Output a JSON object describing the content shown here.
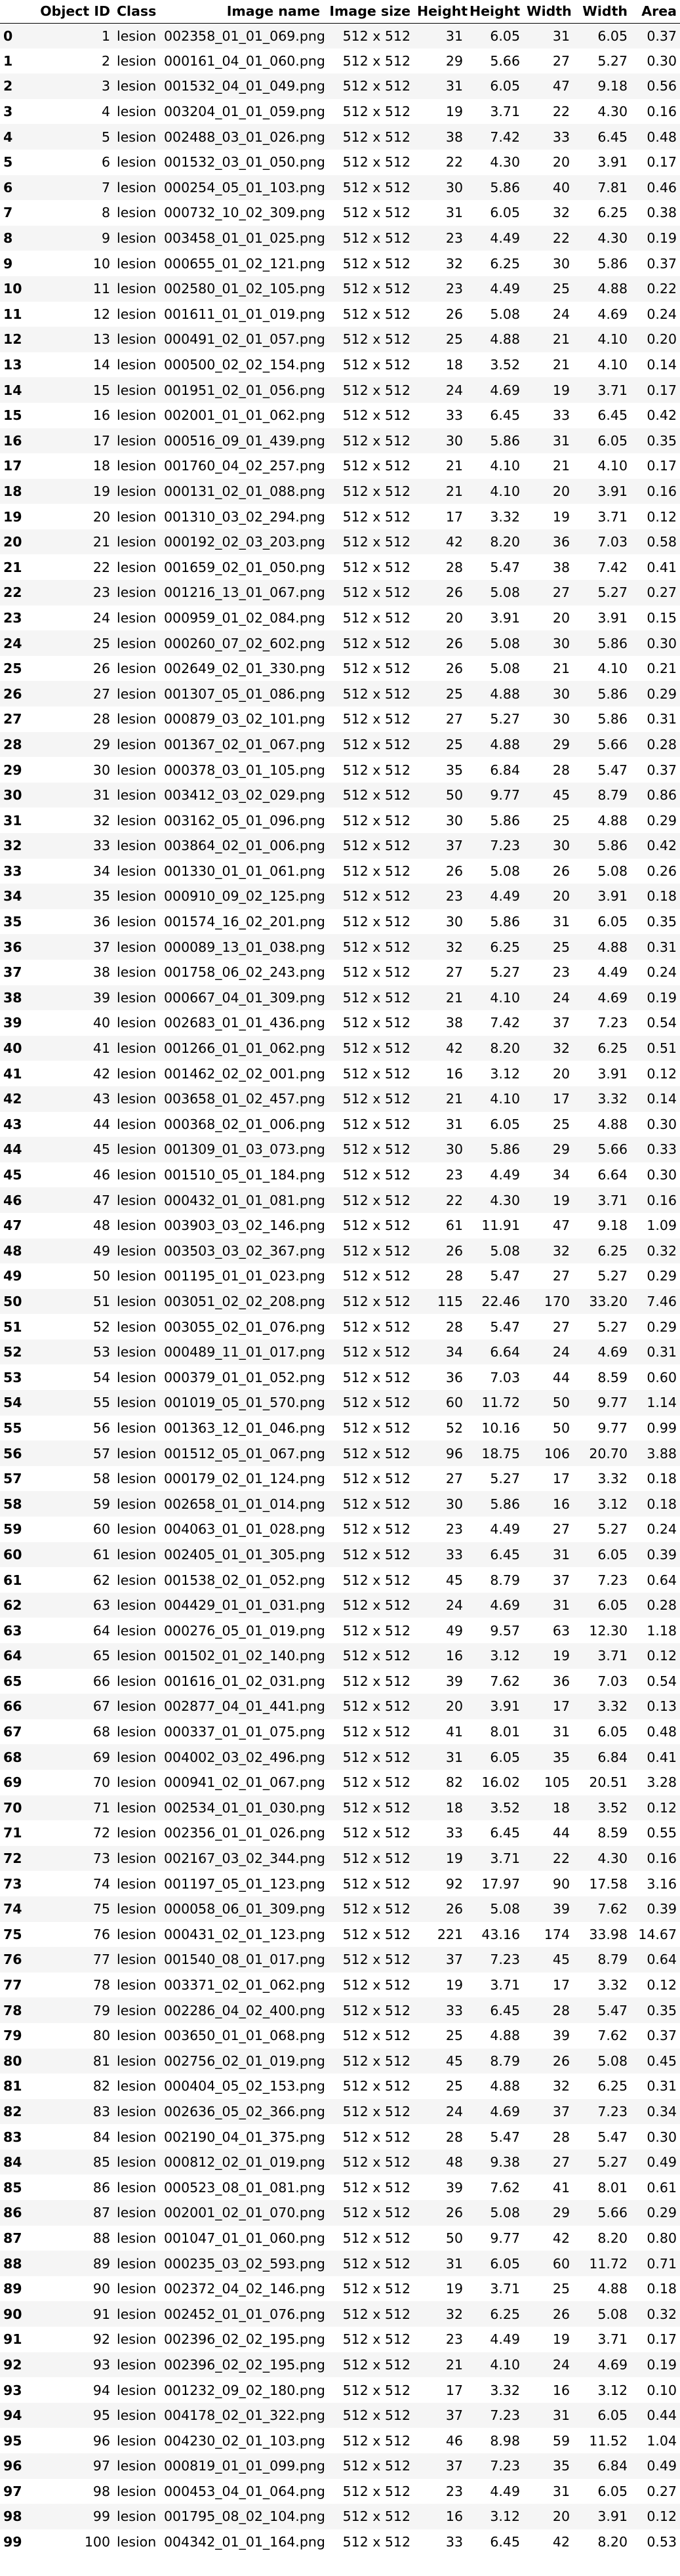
{
  "table": {
    "columns": [
      "",
      "Object ID",
      "Class",
      "Image name",
      "Image size",
      "Height",
      "Height",
      "Width",
      "Width",
      "Area"
    ],
    "rows": [
      [
        "0",
        "1",
        "lesion",
        "002358_01_01_069.png",
        "512 x 512",
        "31",
        "6.05",
        "31",
        "6.05",
        "0.37"
      ],
      [
        "1",
        "2",
        "lesion",
        "000161_04_01_060.png",
        "512 x 512",
        "29",
        "5.66",
        "27",
        "5.27",
        "0.30"
      ],
      [
        "2",
        "3",
        "lesion",
        "001532_04_01_049.png",
        "512 x 512",
        "31",
        "6.05",
        "47",
        "9.18",
        "0.56"
      ],
      [
        "3",
        "4",
        "lesion",
        "003204_01_01_059.png",
        "512 x 512",
        "19",
        "3.71",
        "22",
        "4.30",
        "0.16"
      ],
      [
        "4",
        "5",
        "lesion",
        "002488_03_01_026.png",
        "512 x 512",
        "38",
        "7.42",
        "33",
        "6.45",
        "0.48"
      ],
      [
        "5",
        "6",
        "lesion",
        "001532_03_01_050.png",
        "512 x 512",
        "22",
        "4.30",
        "20",
        "3.91",
        "0.17"
      ],
      [
        "6",
        "7",
        "lesion",
        "000254_05_01_103.png",
        "512 x 512",
        "30",
        "5.86",
        "40",
        "7.81",
        "0.46"
      ],
      [
        "7",
        "8",
        "lesion",
        "000732_10_02_309.png",
        "512 x 512",
        "31",
        "6.05",
        "32",
        "6.25",
        "0.38"
      ],
      [
        "8",
        "9",
        "lesion",
        "003458_01_01_025.png",
        "512 x 512",
        "23",
        "4.49",
        "22",
        "4.30",
        "0.19"
      ],
      [
        "9",
        "10",
        "lesion",
        "000655_01_02_121.png",
        "512 x 512",
        "32",
        "6.25",
        "30",
        "5.86",
        "0.37"
      ],
      [
        "10",
        "11",
        "lesion",
        "002580_01_02_105.png",
        "512 x 512",
        "23",
        "4.49",
        "25",
        "4.88",
        "0.22"
      ],
      [
        "11",
        "12",
        "lesion",
        "001611_01_01_019.png",
        "512 x 512",
        "26",
        "5.08",
        "24",
        "4.69",
        "0.24"
      ],
      [
        "12",
        "13",
        "lesion",
        "000491_02_01_057.png",
        "512 x 512",
        "25",
        "4.88",
        "21",
        "4.10",
        "0.20"
      ],
      [
        "13",
        "14",
        "lesion",
        "000500_02_02_154.png",
        "512 x 512",
        "18",
        "3.52",
        "21",
        "4.10",
        "0.14"
      ],
      [
        "14",
        "15",
        "lesion",
        "001951_02_01_056.png",
        "512 x 512",
        "24",
        "4.69",
        "19",
        "3.71",
        "0.17"
      ],
      [
        "15",
        "16",
        "lesion",
        "002001_01_01_062.png",
        "512 x 512",
        "33",
        "6.45",
        "33",
        "6.45",
        "0.42"
      ],
      [
        "16",
        "17",
        "lesion",
        "000516_09_01_439.png",
        "512 x 512",
        "30",
        "5.86",
        "31",
        "6.05",
        "0.35"
      ],
      [
        "17",
        "18",
        "lesion",
        "001760_04_02_257.png",
        "512 x 512",
        "21",
        "4.10",
        "21",
        "4.10",
        "0.17"
      ],
      [
        "18",
        "19",
        "lesion",
        "000131_02_01_088.png",
        "512 x 512",
        "21",
        "4.10",
        "20",
        "3.91",
        "0.16"
      ],
      [
        "19",
        "20",
        "lesion",
        "001310_03_02_294.png",
        "512 x 512",
        "17",
        "3.32",
        "19",
        "3.71",
        "0.12"
      ],
      [
        "20",
        "21",
        "lesion",
        "000192_02_03_203.png",
        "512 x 512",
        "42",
        "8.20",
        "36",
        "7.03",
        "0.58"
      ],
      [
        "21",
        "22",
        "lesion",
        "001659_02_01_050.png",
        "512 x 512",
        "28",
        "5.47",
        "38",
        "7.42",
        "0.41"
      ],
      [
        "22",
        "23",
        "lesion",
        "001216_13_01_067.png",
        "512 x 512",
        "26",
        "5.08",
        "27",
        "5.27",
        "0.27"
      ],
      [
        "23",
        "24",
        "lesion",
        "000959_01_02_084.png",
        "512 x 512",
        "20",
        "3.91",
        "20",
        "3.91",
        "0.15"
      ],
      [
        "24",
        "25",
        "lesion",
        "000260_07_02_602.png",
        "512 x 512",
        "26",
        "5.08",
        "30",
        "5.86",
        "0.30"
      ],
      [
        "25",
        "26",
        "lesion",
        "002649_02_01_330.png",
        "512 x 512",
        "26",
        "5.08",
        "21",
        "4.10",
        "0.21"
      ],
      [
        "26",
        "27",
        "lesion",
        "001307_05_01_086.png",
        "512 x 512",
        "25",
        "4.88",
        "30",
        "5.86",
        "0.29"
      ],
      [
        "27",
        "28",
        "lesion",
        "000879_03_02_101.png",
        "512 x 512",
        "27",
        "5.27",
        "30",
        "5.86",
        "0.31"
      ],
      [
        "28",
        "29",
        "lesion",
        "001367_02_01_067.png",
        "512 x 512",
        "25",
        "4.88",
        "29",
        "5.66",
        "0.28"
      ],
      [
        "29",
        "30",
        "lesion",
        "000378_03_01_105.png",
        "512 x 512",
        "35",
        "6.84",
        "28",
        "5.47",
        "0.37"
      ],
      [
        "30",
        "31",
        "lesion",
        "003412_03_02_029.png",
        "512 x 512",
        "50",
        "9.77",
        "45",
        "8.79",
        "0.86"
      ],
      [
        "31",
        "32",
        "lesion",
        "003162_05_01_096.png",
        "512 x 512",
        "30",
        "5.86",
        "25",
        "4.88",
        "0.29"
      ],
      [
        "32",
        "33",
        "lesion",
        "003864_02_01_006.png",
        "512 x 512",
        "37",
        "7.23",
        "30",
        "5.86",
        "0.42"
      ],
      [
        "33",
        "34",
        "lesion",
        "001330_01_01_061.png",
        "512 x 512",
        "26",
        "5.08",
        "26",
        "5.08",
        "0.26"
      ],
      [
        "34",
        "35",
        "lesion",
        "000910_09_02_125.png",
        "512 x 512",
        "23",
        "4.49",
        "20",
        "3.91",
        "0.18"
      ],
      [
        "35",
        "36",
        "lesion",
        "001574_16_02_201.png",
        "512 x 512",
        "30",
        "5.86",
        "31",
        "6.05",
        "0.35"
      ],
      [
        "36",
        "37",
        "lesion",
        "000089_13_01_038.png",
        "512 x 512",
        "32",
        "6.25",
        "25",
        "4.88",
        "0.31"
      ],
      [
        "37",
        "38",
        "lesion",
        "001758_06_02_243.png",
        "512 x 512",
        "27",
        "5.27",
        "23",
        "4.49",
        "0.24"
      ],
      [
        "38",
        "39",
        "lesion",
        "000667_04_01_309.png",
        "512 x 512",
        "21",
        "4.10",
        "24",
        "4.69",
        "0.19"
      ],
      [
        "39",
        "40",
        "lesion",
        "002683_01_01_436.png",
        "512 x 512",
        "38",
        "7.42",
        "37",
        "7.23",
        "0.54"
      ],
      [
        "40",
        "41",
        "lesion",
        "001266_01_01_062.png",
        "512 x 512",
        "42",
        "8.20",
        "32",
        "6.25",
        "0.51"
      ],
      [
        "41",
        "42",
        "lesion",
        "001462_02_02_001.png",
        "512 x 512",
        "16",
        "3.12",
        "20",
        "3.91",
        "0.12"
      ],
      [
        "42",
        "43",
        "lesion",
        "003658_01_02_457.png",
        "512 x 512",
        "21",
        "4.10",
        "17",
        "3.32",
        "0.14"
      ],
      [
        "43",
        "44",
        "lesion",
        "000368_02_01_006.png",
        "512 x 512",
        "31",
        "6.05",
        "25",
        "4.88",
        "0.30"
      ],
      [
        "44",
        "45",
        "lesion",
        "001309_01_03_073.png",
        "512 x 512",
        "30",
        "5.86",
        "29",
        "5.66",
        "0.33"
      ],
      [
        "45",
        "46",
        "lesion",
        "001510_05_01_184.png",
        "512 x 512",
        "23",
        "4.49",
        "34",
        "6.64",
        "0.30"
      ],
      [
        "46",
        "47",
        "lesion",
        "000432_01_01_081.png",
        "512 x 512",
        "22",
        "4.30",
        "19",
        "3.71",
        "0.16"
      ],
      [
        "47",
        "48",
        "lesion",
        "003903_03_02_146.png",
        "512 x 512",
        "61",
        "11.91",
        "47",
        "9.18",
        "1.09"
      ],
      [
        "48",
        "49",
        "lesion",
        "003503_03_02_367.png",
        "512 x 512",
        "26",
        "5.08",
        "32",
        "6.25",
        "0.32"
      ],
      [
        "49",
        "50",
        "lesion",
        "001195_01_01_023.png",
        "512 x 512",
        "28",
        "5.47",
        "27",
        "5.27",
        "0.29"
      ],
      [
        "50",
        "51",
        "lesion",
        "003051_02_02_208.png",
        "512 x 512",
        "115",
        "22.46",
        "170",
        "33.20",
        "7.46"
      ],
      [
        "51",
        "52",
        "lesion",
        "003055_02_01_076.png",
        "512 x 512",
        "28",
        "5.47",
        "27",
        "5.27",
        "0.29"
      ],
      [
        "52",
        "53",
        "lesion",
        "000489_11_01_017.png",
        "512 x 512",
        "34",
        "6.64",
        "24",
        "4.69",
        "0.31"
      ],
      [
        "53",
        "54",
        "lesion",
        "000379_01_01_052.png",
        "512 x 512",
        "36",
        "7.03",
        "44",
        "8.59",
        "0.60"
      ],
      [
        "54",
        "55",
        "lesion",
        "001019_05_01_570.png",
        "512 x 512",
        "60",
        "11.72",
        "50",
        "9.77",
        "1.14"
      ],
      [
        "55",
        "56",
        "lesion",
        "001363_12_01_046.png",
        "512 x 512",
        "52",
        "10.16",
        "50",
        "9.77",
        "0.99"
      ],
      [
        "56",
        "57",
        "lesion",
        "001512_05_01_067.png",
        "512 x 512",
        "96",
        "18.75",
        "106",
        "20.70",
        "3.88"
      ],
      [
        "57",
        "58",
        "lesion",
        "000179_02_01_124.png",
        "512 x 512",
        "27",
        "5.27",
        "17",
        "3.32",
        "0.18"
      ],
      [
        "58",
        "59",
        "lesion",
        "002658_01_01_014.png",
        "512 x 512",
        "30",
        "5.86",
        "16",
        "3.12",
        "0.18"
      ],
      [
        "59",
        "60",
        "lesion",
        "004063_01_01_028.png",
        "512 x 512",
        "23",
        "4.49",
        "27",
        "5.27",
        "0.24"
      ],
      [
        "60",
        "61",
        "lesion",
        "002405_01_01_305.png",
        "512 x 512",
        "33",
        "6.45",
        "31",
        "6.05",
        "0.39"
      ],
      [
        "61",
        "62",
        "lesion",
        "001538_02_01_052.png",
        "512 x 512",
        "45",
        "8.79",
        "37",
        "7.23",
        "0.64"
      ],
      [
        "62",
        "63",
        "lesion",
        "004429_01_01_031.png",
        "512 x 512",
        "24",
        "4.69",
        "31",
        "6.05",
        "0.28"
      ],
      [
        "63",
        "64",
        "lesion",
        "000276_05_01_019.png",
        "512 x 512",
        "49",
        "9.57",
        "63",
        "12.30",
        "1.18"
      ],
      [
        "64",
        "65",
        "lesion",
        "001502_01_02_140.png",
        "512 x 512",
        "16",
        "3.12",
        "19",
        "3.71",
        "0.12"
      ],
      [
        "65",
        "66",
        "lesion",
        "001616_01_02_031.png",
        "512 x 512",
        "39",
        "7.62",
        "36",
        "7.03",
        "0.54"
      ],
      [
        "66",
        "67",
        "lesion",
        "002877_04_01_441.png",
        "512 x 512",
        "20",
        "3.91",
        "17",
        "3.32",
        "0.13"
      ],
      [
        "67",
        "68",
        "lesion",
        "000337_01_01_075.png",
        "512 x 512",
        "41",
        "8.01",
        "31",
        "6.05",
        "0.48"
      ],
      [
        "68",
        "69",
        "lesion",
        "004002_03_02_496.png",
        "512 x 512",
        "31",
        "6.05",
        "35",
        "6.84",
        "0.41"
      ],
      [
        "69",
        "70",
        "lesion",
        "000941_02_01_067.png",
        "512 x 512",
        "82",
        "16.02",
        "105",
        "20.51",
        "3.28"
      ],
      [
        "70",
        "71",
        "lesion",
        "002534_01_01_030.png",
        "512 x 512",
        "18",
        "3.52",
        "18",
        "3.52",
        "0.12"
      ],
      [
        "71",
        "72",
        "lesion",
        "002356_01_01_026.png",
        "512 x 512",
        "33",
        "6.45",
        "44",
        "8.59",
        "0.55"
      ],
      [
        "72",
        "73",
        "lesion",
        "002167_03_02_344.png",
        "512 x 512",
        "19",
        "3.71",
        "22",
        "4.30",
        "0.16"
      ],
      [
        "73",
        "74",
        "lesion",
        "001197_05_01_123.png",
        "512 x 512",
        "92",
        "17.97",
        "90",
        "17.58",
        "3.16"
      ],
      [
        "74",
        "75",
        "lesion",
        "000058_06_01_309.png",
        "512 x 512",
        "26",
        "5.08",
        "39",
        "7.62",
        "0.39"
      ],
      [
        "75",
        "76",
        "lesion",
        "000431_02_01_123.png",
        "512 x 512",
        "221",
        "43.16",
        "174",
        "33.98",
        "14.67"
      ],
      [
        "76",
        "77",
        "lesion",
        "001540_08_01_017.png",
        "512 x 512",
        "37",
        "7.23",
        "45",
        "8.79",
        "0.64"
      ],
      [
        "77",
        "78",
        "lesion",
        "003371_02_01_062.png",
        "512 x 512",
        "19",
        "3.71",
        "17",
        "3.32",
        "0.12"
      ],
      [
        "78",
        "79",
        "lesion",
        "002286_04_02_400.png",
        "512 x 512",
        "33",
        "6.45",
        "28",
        "5.47",
        "0.35"
      ],
      [
        "79",
        "80",
        "lesion",
        "003650_01_01_068.png",
        "512 x 512",
        "25",
        "4.88",
        "39",
        "7.62",
        "0.37"
      ],
      [
        "80",
        "81",
        "lesion",
        "002756_02_01_019.png",
        "512 x 512",
        "45",
        "8.79",
        "26",
        "5.08",
        "0.45"
      ],
      [
        "81",
        "82",
        "lesion",
        "000404_05_02_153.png",
        "512 x 512",
        "25",
        "4.88",
        "32",
        "6.25",
        "0.31"
      ],
      [
        "82",
        "83",
        "lesion",
        "002636_05_02_366.png",
        "512 x 512",
        "24",
        "4.69",
        "37",
        "7.23",
        "0.34"
      ],
      [
        "83",
        "84",
        "lesion",
        "002190_04_01_375.png",
        "512 x 512",
        "28",
        "5.47",
        "28",
        "5.47",
        "0.30"
      ],
      [
        "84",
        "85",
        "lesion",
        "000812_02_01_019.png",
        "512 x 512",
        "48",
        "9.38",
        "27",
        "5.27",
        "0.49"
      ],
      [
        "85",
        "86",
        "lesion",
        "000523_08_01_081.png",
        "512 x 512",
        "39",
        "7.62",
        "41",
        "8.01",
        "0.61"
      ],
      [
        "86",
        "87",
        "lesion",
        "002001_02_01_070.png",
        "512 x 512",
        "26",
        "5.08",
        "29",
        "5.66",
        "0.29"
      ],
      [
        "87",
        "88",
        "lesion",
        "001047_01_01_060.png",
        "512 x 512",
        "50",
        "9.77",
        "42",
        "8.20",
        "0.80"
      ],
      [
        "88",
        "89",
        "lesion",
        "000235_03_02_593.png",
        "512 x 512",
        "31",
        "6.05",
        "60",
        "11.72",
        "0.71"
      ],
      [
        "89",
        "90",
        "lesion",
        "002372_04_02_146.png",
        "512 x 512",
        "19",
        "3.71",
        "25",
        "4.88",
        "0.18"
      ],
      [
        "90",
        "91",
        "lesion",
        "002452_01_01_076.png",
        "512 x 512",
        "32",
        "6.25",
        "26",
        "5.08",
        "0.32"
      ],
      [
        "91",
        "92",
        "lesion",
        "002396_02_02_195.png",
        "512 x 512",
        "23",
        "4.49",
        "19",
        "3.71",
        "0.17"
      ],
      [
        "92",
        "93",
        "lesion",
        "002396_02_02_195.png",
        "512 x 512",
        "21",
        "4.10",
        "24",
        "4.69",
        "0.19"
      ],
      [
        "93",
        "94",
        "lesion",
        "001232_09_02_180.png",
        "512 x 512",
        "17",
        "3.32",
        "16",
        "3.12",
        "0.10"
      ],
      [
        "94",
        "95",
        "lesion",
        "004178_02_01_322.png",
        "512 x 512",
        "37",
        "7.23",
        "31",
        "6.05",
        "0.44"
      ],
      [
        "95",
        "96",
        "lesion",
        "004230_02_01_103.png",
        "512 x 512",
        "46",
        "8.98",
        "59",
        "11.52",
        "1.04"
      ],
      [
        "96",
        "97",
        "lesion",
        "000819_01_01_099.png",
        "512 x 512",
        "37",
        "7.23",
        "35",
        "6.84",
        "0.49"
      ],
      [
        "97",
        "98",
        "lesion",
        "000453_04_01_064.png",
        "512 x 512",
        "23",
        "4.49",
        "31",
        "6.05",
        "0.27"
      ],
      [
        "98",
        "99",
        "lesion",
        "001795_08_02_104.png",
        "512 x 512",
        "16",
        "3.12",
        "20",
        "3.91",
        "0.12"
      ],
      [
        "99",
        "100",
        "lesion",
        "004342_01_01_164.png",
        "512 x 512",
        "33",
        "6.45",
        "42",
        "8.20",
        "0.53"
      ]
    ]
  }
}
